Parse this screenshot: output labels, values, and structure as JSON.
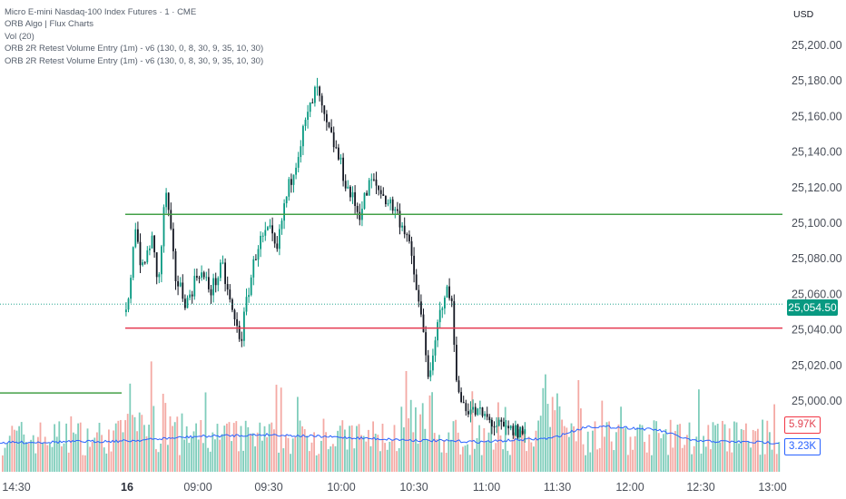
{
  "legend": {
    "symbol": "Micro E-mini Nasdaq-100 Index Futures · 1 · CME",
    "indicator_1": "ORB Algo | Flux Charts",
    "indicator_2": "Vol (20)",
    "indicator_3": "ORB 2R Retest Volume Entry (1m) - v6 (130, 0, 8, 30, 9, 35, 10, 30)",
    "indicator_4": "ORB 2R Retest Volume Entry (1m) - v6 (130, 0, 8, 30, 9, 35, 10, 30)"
  },
  "currency": "USD",
  "badges": {
    "last_price": "25,054.50",
    "volume": "5.97K",
    "volume_ma": "3.23K"
  },
  "colors": {
    "up": "#089981",
    "down": "#131722",
    "vol_up": "#7fcdbb",
    "vol_down": "#f4a9a4",
    "vol_ma": "#2962ff",
    "orb_high": "#43a047",
    "orb_low": "#e53950",
    "price_line": "#089981"
  },
  "chart_data": {
    "type": "candlestick",
    "title": "Micro E-mini Nasdaq-100 Index Futures · 1 · CME",
    "currency": "USD",
    "y_ticks": [
      25000,
      25020,
      25040,
      25060,
      25080,
      25100,
      25120,
      25140,
      25160,
      25180,
      25200
    ],
    "y_tick_labels": [
      "25,000.00",
      "25,020.00",
      "25,040.00",
      "25,060.00",
      "25,080.00",
      "25,100.00",
      "25,120.00",
      "25,140.00",
      "25,160.00",
      "25,180.00",
      "25,200.00"
    ],
    "ylim": [
      24981,
      25221
    ],
    "x_tick_labels": [
      "14:30",
      "16",
      "09:00",
      "09:30",
      "10:00",
      "10:30",
      "11:00",
      "11:30",
      "12:00",
      "12:30",
      "13:00"
    ],
    "x_tick_times": [
      "14:30",
      "08:30",
      "09:00",
      "09:30",
      "10:00",
      "10:30",
      "11:00",
      "11:30",
      "12:00",
      "12:30",
      "13:00"
    ],
    "bold_tick": "16",
    "last_price": 25054.5,
    "orb_high": 25105,
    "orb_low": 25041,
    "prev_level": 25004.5,
    "price_path": [
      [
        "08:30",
        25050
      ],
      [
        "08:33",
        25102
      ],
      [
        "08:36",
        25072
      ],
      [
        "08:40",
        25092
      ],
      [
        "08:43",
        25065
      ],
      [
        "08:46",
        25120
      ],
      [
        "08:50",
        25070
      ],
      [
        "08:55",
        25055
      ],
      [
        "09:00",
        25074
      ],
      [
        "09:05",
        25062
      ],
      [
        "09:10",
        25075
      ],
      [
        "09:15",
        25045
      ],
      [
        "09:18",
        25035
      ],
      [
        "09:21",
        25062
      ],
      [
        "09:25",
        25088
      ],
      [
        "09:30",
        25095
      ],
      [
        "09:33",
        25082
      ],
      [
        "09:36",
        25108
      ],
      [
        "09:40",
        25130
      ],
      [
        "09:45",
        25155
      ],
      [
        "09:50",
        25176
      ],
      [
        "09:53",
        25158
      ],
      [
        "09:58",
        25142
      ],
      [
        "10:03",
        25120
      ],
      [
        "10:08",
        25105
      ],
      [
        "10:13",
        25124
      ],
      [
        "10:18",
        25116
      ],
      [
        "10:23",
        25108
      ],
      [
        "10:28",
        25095
      ],
      [
        "10:32",
        25065
      ],
      [
        "10:35",
        25040
      ],
      [
        "10:38",
        25010
      ],
      [
        "10:41",
        25040
      ],
      [
        "10:44",
        25062
      ],
      [
        "10:47",
        25058
      ],
      [
        "10:50",
        25002
      ],
      [
        "10:55",
        24995
      ],
      [
        "11:00",
        24992
      ],
      [
        "11:05",
        24987
      ],
      [
        "11:10",
        24983
      ]
    ],
    "volume_bars_sample": "bars rendered procedurally with ~1-minute spacing; volume MA(20) line shown",
    "volume_ma_path": [
      [
        "start",
        3.2
      ],
      [
        "08:30",
        3.4
      ],
      [
        "09:00",
        3.9
      ],
      [
        "09:30",
        4.1
      ],
      [
        "10:00",
        3.8
      ],
      [
        "10:30",
        3.5
      ],
      [
        "11:00",
        3.3
      ],
      [
        "11:30",
        3.7
      ],
      [
        "11:45",
        5.0
      ],
      [
        "12:00",
        4.9
      ],
      [
        "12:15",
        4.6
      ],
      [
        "12:30",
        3.4
      ],
      [
        "13:00",
        3.2
      ]
    ]
  }
}
